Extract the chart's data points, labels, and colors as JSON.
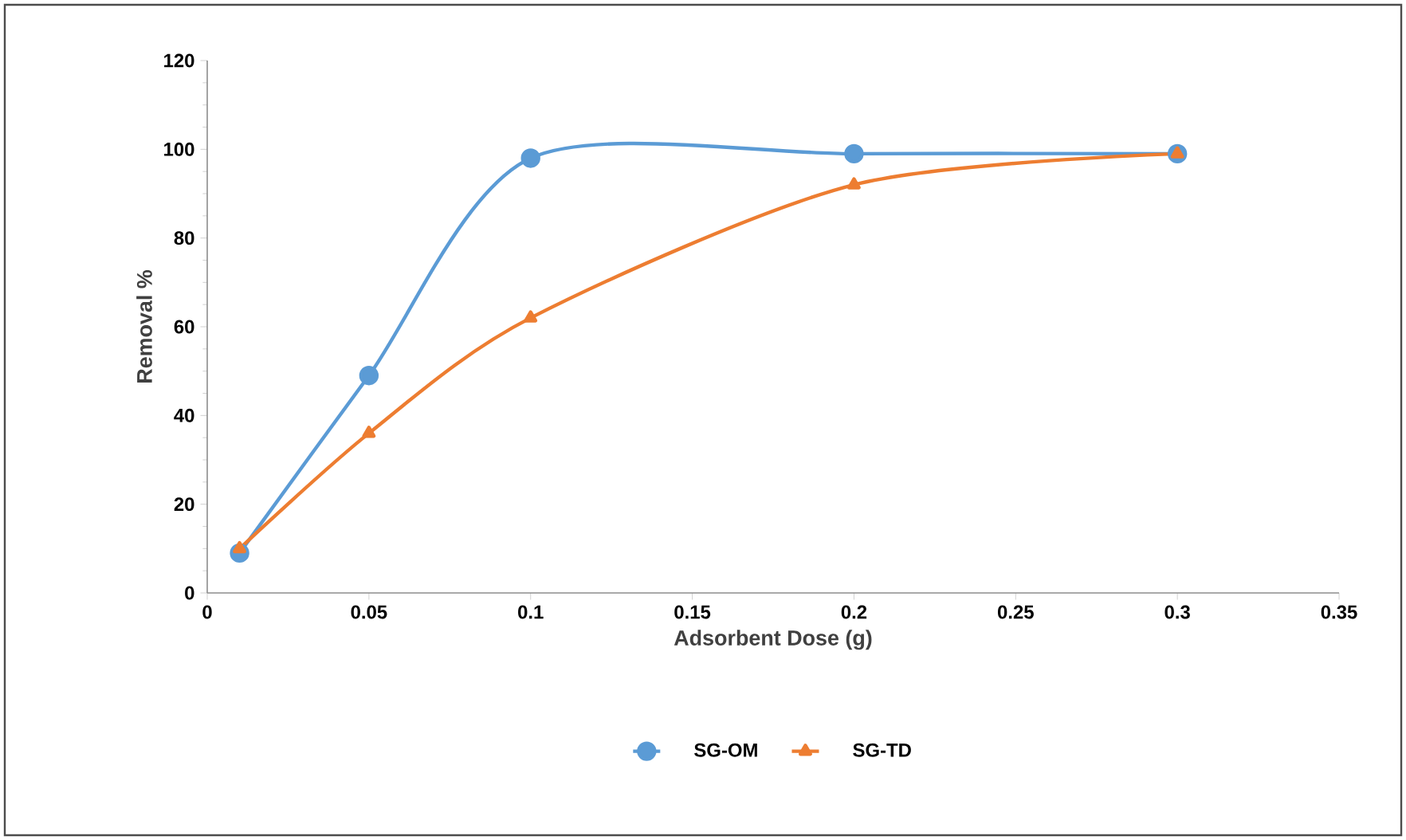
{
  "chart_data": {
    "type": "line",
    "xlabel": "Adsorbent Dose (g)",
    "ylabel": "Removal %",
    "x": [
      0.01,
      0.05,
      0.1,
      0.2,
      0.3
    ],
    "series": [
      {
        "name": "SG-OM",
        "color": "#5b9bd5",
        "marker": "circle",
        "values": [
          9,
          49,
          98,
          99,
          99
        ]
      },
      {
        "name": "SG-TD",
        "color": "#ed7d31",
        "marker": "triangle",
        "values": [
          10,
          36,
          62,
          92,
          99
        ]
      }
    ],
    "xlim": [
      0,
      0.35
    ],
    "xticks": [
      0,
      0.05,
      0.1,
      0.15,
      0.2,
      0.25,
      0.3,
      0.35
    ],
    "ylim": [
      0,
      120
    ],
    "yticks": [
      0,
      20,
      40,
      60,
      80,
      100,
      120
    ],
    "grid": false,
    "legend": "bottom",
    "line_style": "solid"
  }
}
